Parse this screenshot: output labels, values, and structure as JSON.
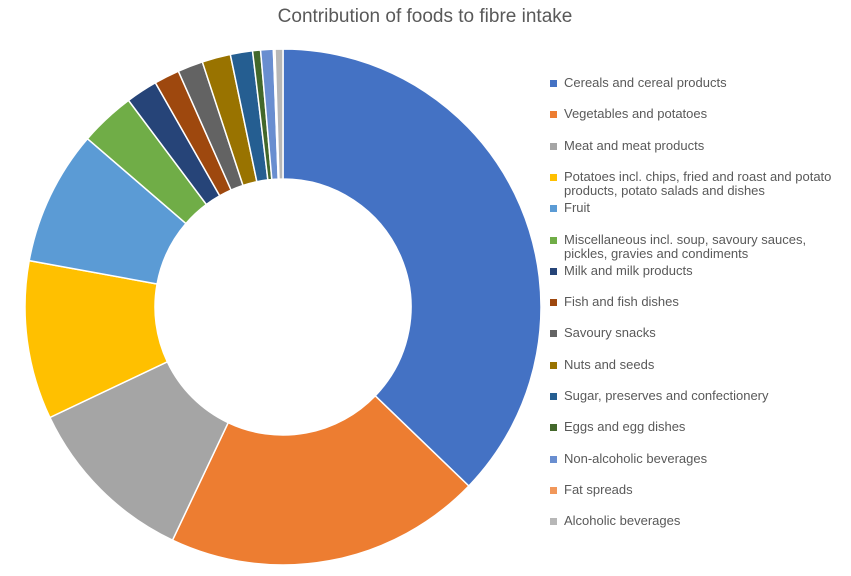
{
  "chart_data": {
    "type": "donut",
    "title": "Contribution of foods to fibre intake",
    "categories": [
      "Cereals and cereal products",
      "Vegetables and potatoes",
      "Meat and meat products",
      "Potatoes incl. chips, fried and roast and potato products, potato salads and dishes",
      "Fruit",
      "Miscellaneous incl. soup, savoury sauces, pickles, gravies and condiments",
      "Milk and milk products",
      "Fish and fish dishes",
      "Savoury snacks",
      "Nuts and seeds",
      "Sugar, preserves and confectionery",
      "Eggs and egg dishes",
      "Non-alcoholic beverages",
      "Fat spreads",
      "Alcoholic beverages"
    ],
    "values": [
      37.5,
      20,
      11,
      10,
      8.5,
      3.5,
      2,
      1.6,
      1.6,
      1.8,
      1.4,
      0.5,
      0.8,
      0.1,
      0.5
    ],
    "colors": [
      "#4472c4",
      "#ed7d31",
      "#a5a5a5",
      "#ffc000",
      "#5b9bd5",
      "#70ad47",
      "#264478",
      "#9e480e",
      "#636363",
      "#997300",
      "#255e91",
      "#43682b",
      "#698ed0",
      "#f1975a",
      "#b7b7b7"
    ],
    "legend": "right"
  }
}
